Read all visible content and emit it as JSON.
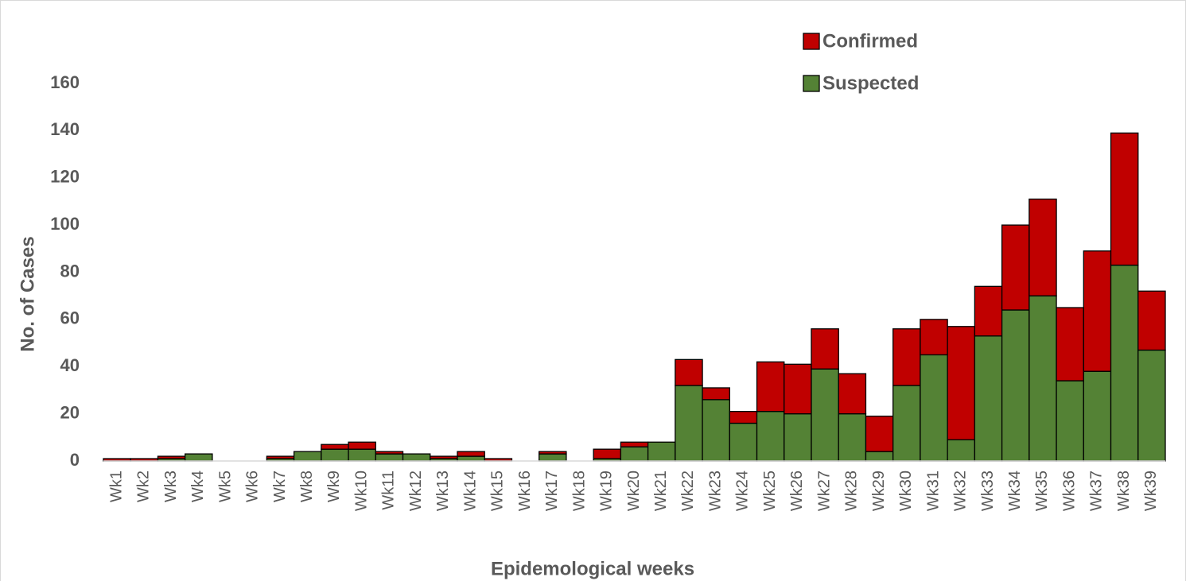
{
  "chart_data": {
    "type": "stacked_bar",
    "x_label": "Epidemological weeks",
    "y_label": "No. of Cases",
    "categories": [
      "Wk1",
      "Wk2",
      "Wk3",
      "Wk4",
      "Wk5",
      "Wk6",
      "Wk7",
      "Wk8",
      "Wk9",
      "Wk10",
      "Wk11",
      "Wk12",
      "Wk13",
      "Wk14",
      "Wk15",
      "Wk16",
      "Wk17",
      "Wk18",
      "Wk19",
      "Wk20",
      "Wk21",
      "Wk22",
      "Wk23",
      "Wk24",
      "Wk25",
      "Wk26",
      "Wk27",
      "Wk28",
      "Wk29",
      "Wk30",
      "Wk31",
      "Wk32",
      "Wk33",
      "Wk34",
      "Wk35",
      "Wk36",
      "Wk37",
      "Wk38",
      "Wk39"
    ],
    "series": [
      {
        "name": "Suspected",
        "color": "#548235",
        "values": [
          0,
          0,
          1,
          3,
          0,
          0,
          1,
          4,
          5,
          5,
          3,
          3,
          1,
          2,
          0,
          0,
          3,
          0,
          1,
          6,
          8,
          32,
          26,
          16,
          21,
          20,
          39,
          20,
          4,
          32,
          45,
          9,
          53,
          64,
          70,
          34,
          38,
          83,
          47
        ]
      },
      {
        "name": "Confirmed",
        "color": "#c00000",
        "values": [
          1,
          1,
          1,
          0,
          0,
          0,
          1,
          0,
          2,
          3,
          1,
          0,
          1,
          2,
          1,
          0,
          1,
          0,
          4,
          2,
          0,
          11,
          5,
          5,
          21,
          21,
          17,
          17,
          15,
          24,
          15,
          48,
          21,
          36,
          41,
          31,
          51,
          56,
          25
        ]
      }
    ],
    "ylim": [
      0,
      160
    ],
    "yticks": [
      0,
      20,
      40,
      60,
      80,
      100,
      120,
      140,
      160
    ],
    "grid": false
  }
}
